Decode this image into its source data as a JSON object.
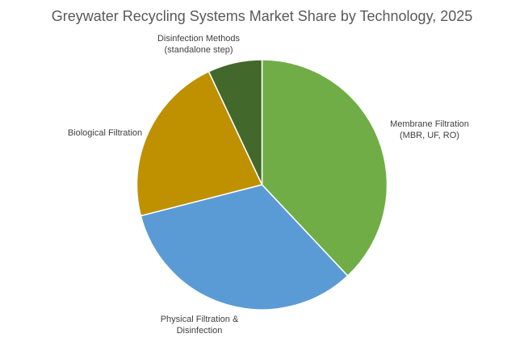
{
  "chart_data": {
    "type": "pie",
    "title": "Greywater Recycling Systems Market Share by Technology, 2025",
    "start_angle_deg": 0,
    "slices": [
      {
        "label": [
          "Membrane Filtration",
          "(MBR, UF, RO)"
        ],
        "value": 38,
        "color": "#70AD47"
      },
      {
        "label": [
          "Physical Filtration &",
          "Disinfection"
        ],
        "value": 33,
        "color": "#5B9BD5"
      },
      {
        "label": [
          "Biological Filtration"
        ],
        "value": 22,
        "color": "#BF9000"
      },
      {
        "label": [
          "Disinfection Methods",
          "(standalone step)"
        ],
        "value": 7,
        "color": "#43682B"
      }
    ]
  }
}
